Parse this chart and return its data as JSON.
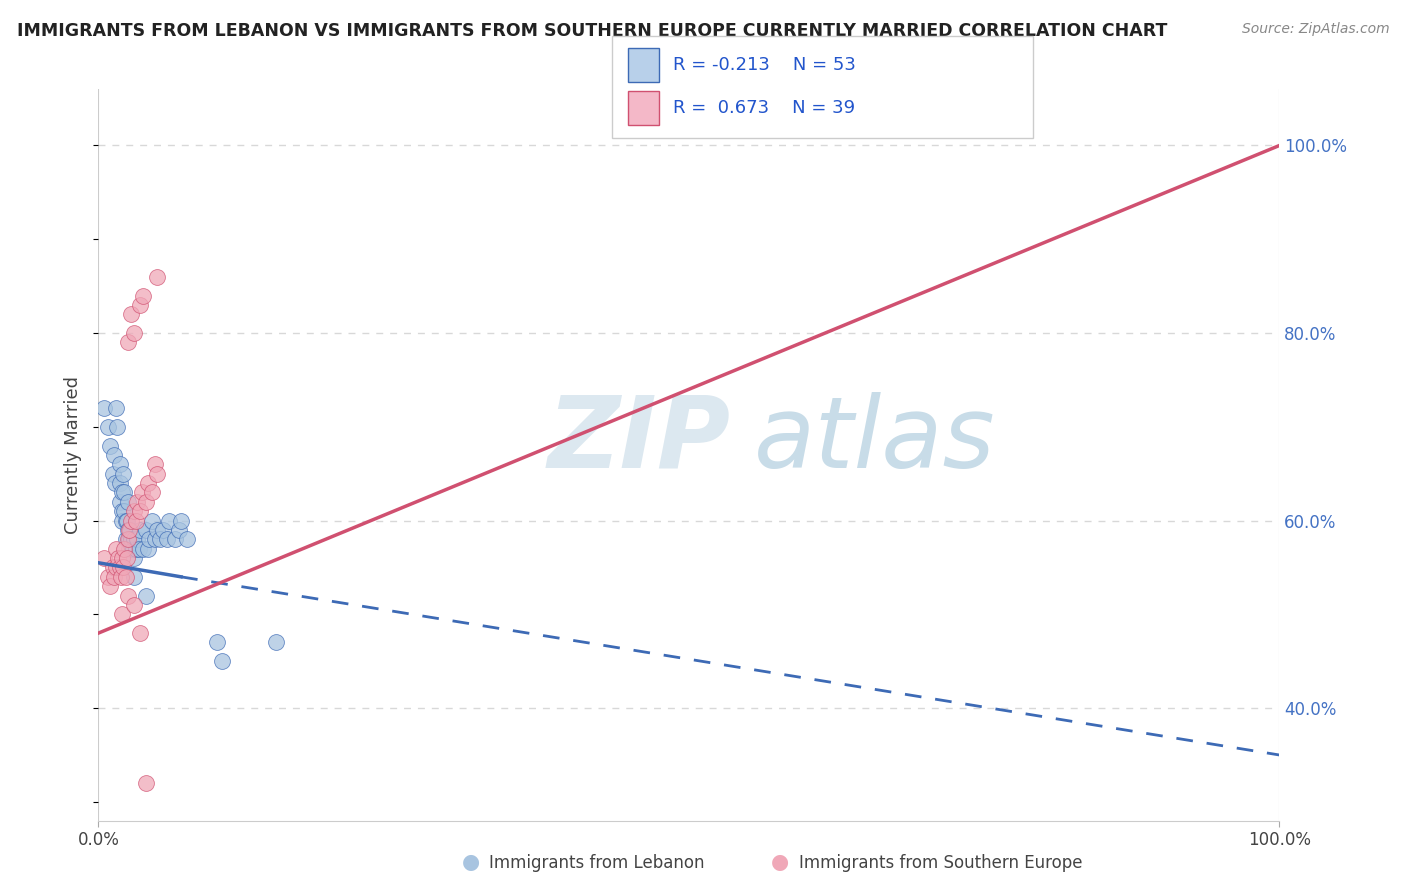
{
  "title": "IMMIGRANTS FROM LEBANON VS IMMIGRANTS FROM SOUTHERN EUROPE CURRENTLY MARRIED CORRELATION CHART",
  "source": "Source: ZipAtlas.com",
  "ylabel": "Currently Married",
  "blue_color": "#a8c4e0",
  "pink_color": "#f0a8b8",
  "blue_line_color": "#3d6ab5",
  "pink_line_color": "#d05070",
  "blue_scatter": [
    [
      0.005,
      0.72
    ],
    [
      0.008,
      0.7
    ],
    [
      0.01,
      0.68
    ],
    [
      0.012,
      0.65
    ],
    [
      0.013,
      0.67
    ],
    [
      0.014,
      0.64
    ],
    [
      0.015,
      0.72
    ],
    [
      0.016,
      0.7
    ],
    [
      0.018,
      0.66
    ],
    [
      0.018,
      0.64
    ],
    [
      0.018,
      0.62
    ],
    [
      0.02,
      0.63
    ],
    [
      0.02,
      0.61
    ],
    [
      0.02,
      0.6
    ],
    [
      0.021,
      0.65
    ],
    [
      0.022,
      0.63
    ],
    [
      0.022,
      0.61
    ],
    [
      0.023,
      0.6
    ],
    [
      0.023,
      0.58
    ],
    [
      0.024,
      0.6
    ],
    [
      0.025,
      0.62
    ],
    [
      0.025,
      0.59
    ],
    [
      0.026,
      0.58
    ],
    [
      0.026,
      0.57
    ],
    [
      0.027,
      0.59
    ],
    [
      0.028,
      0.58
    ],
    [
      0.029,
      0.57
    ],
    [
      0.03,
      0.58
    ],
    [
      0.03,
      0.56
    ],
    [
      0.032,
      0.57
    ],
    [
      0.033,
      0.58
    ],
    [
      0.034,
      0.57
    ],
    [
      0.035,
      0.59
    ],
    [
      0.038,
      0.57
    ],
    [
      0.04,
      0.59
    ],
    [
      0.042,
      0.57
    ],
    [
      0.043,
      0.58
    ],
    [
      0.045,
      0.6
    ],
    [
      0.048,
      0.58
    ],
    [
      0.05,
      0.59
    ],
    [
      0.052,
      0.58
    ],
    [
      0.055,
      0.59
    ],
    [
      0.058,
      0.58
    ],
    [
      0.06,
      0.6
    ],
    [
      0.065,
      0.58
    ],
    [
      0.068,
      0.59
    ],
    [
      0.03,
      0.54
    ],
    [
      0.04,
      0.52
    ],
    [
      0.07,
      0.6
    ],
    [
      0.075,
      0.58
    ],
    [
      0.1,
      0.47
    ],
    [
      0.105,
      0.45
    ],
    [
      0.15,
      0.47
    ]
  ],
  "pink_scatter": [
    [
      0.005,
      0.56
    ],
    [
      0.008,
      0.54
    ],
    [
      0.01,
      0.53
    ],
    [
      0.012,
      0.55
    ],
    [
      0.013,
      0.54
    ],
    [
      0.015,
      0.57
    ],
    [
      0.015,
      0.55
    ],
    [
      0.017,
      0.56
    ],
    [
      0.018,
      0.55
    ],
    [
      0.019,
      0.54
    ],
    [
      0.02,
      0.56
    ],
    [
      0.021,
      0.55
    ],
    [
      0.022,
      0.57
    ],
    [
      0.023,
      0.54
    ],
    [
      0.024,
      0.56
    ],
    [
      0.025,
      0.58
    ],
    [
      0.026,
      0.59
    ],
    [
      0.028,
      0.6
    ],
    [
      0.03,
      0.61
    ],
    [
      0.032,
      0.6
    ],
    [
      0.033,
      0.62
    ],
    [
      0.035,
      0.61
    ],
    [
      0.037,
      0.63
    ],
    [
      0.04,
      0.62
    ],
    [
      0.042,
      0.64
    ],
    [
      0.045,
      0.63
    ],
    [
      0.048,
      0.66
    ],
    [
      0.05,
      0.65
    ],
    [
      0.025,
      0.79
    ],
    [
      0.028,
      0.82
    ],
    [
      0.03,
      0.8
    ],
    [
      0.035,
      0.83
    ],
    [
      0.038,
      0.84
    ],
    [
      0.05,
      0.86
    ],
    [
      0.02,
      0.5
    ],
    [
      0.025,
      0.52
    ],
    [
      0.03,
      0.51
    ],
    [
      0.035,
      0.48
    ],
    [
      0.04,
      0.32
    ]
  ],
  "blue_line": {
    "x0": 0.0,
    "x1": 0.07,
    "x_dash": 1.0,
    "y0": 0.555,
    "y1": 0.54,
    "y_dash": 0.35
  },
  "pink_line": {
    "x0": 0.0,
    "x1": 1.0,
    "y0": 0.48,
    "y1": 1.0
  },
  "xlim": [
    0,
    1
  ],
  "ylim": [
    0.28,
    1.06
  ],
  "y_ticks": [
    0.4,
    0.6,
    0.8,
    1.0
  ],
  "y_tick_labels": [
    "40.0%",
    "60.0%",
    "80.0%",
    "100.0%"
  ],
  "x_ticks": [
    0,
    1
  ],
  "x_tick_labels": [
    "0.0%",
    "100.0%"
  ],
  "grid_color": "#d8d8d8",
  "watermark_color": "#dce8f0",
  "background_color": "#ffffff",
  "legend_r1": "R = -0.213",
  "legend_n1": "N = 53",
  "legend_r2": "R =  0.673",
  "legend_n2": "N = 39",
  "legend_blue_fill": "#b8d0ea",
  "legend_pink_fill": "#f4b8c8"
}
